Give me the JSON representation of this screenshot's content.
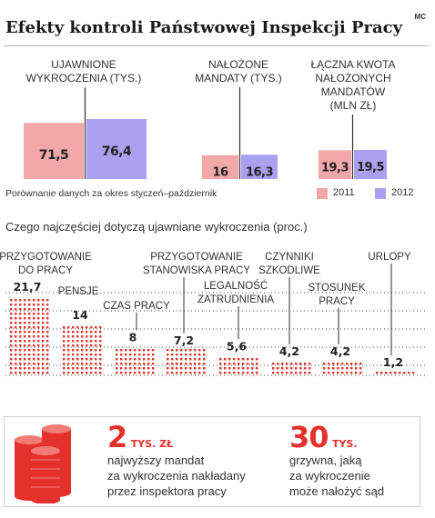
{
  "title": "Efekty kontroli Państwowej Inspekcji Pracy",
  "source": "MC",
  "top_note": "Porównanie danych za okres styczeń–październik",
  "legend": [
    {
      "label": "2011",
      "color": "#f2a8a8"
    },
    {
      "label": "2012",
      "color": "#a9a1ef"
    }
  ],
  "colors": {
    "y2011": "#f2a8a8",
    "y2012": "#a9a1ef",
    "accent": "#e4312b",
    "separator": "#333333"
  },
  "top_chart": {
    "groups": [
      {
        "label_lines": [
          "UJAWNIONE",
          "WYKROCZENIA (TYS.)"
        ],
        "v2011": 71.5,
        "v2012": 76.4,
        "t2011": "71,5",
        "t2012": "76,4"
      },
      {
        "label_lines": [
          "NAŁOŻONE",
          "MANDATY (TYS.)"
        ],
        "v2011": 16,
        "v2012": 16.3,
        "t2011": "16",
        "t2012": "16,3"
      },
      {
        "label_lines": [
          "ŁĄCZNA KWOTA",
          "NAŁOŻONYCH",
          "MANDATÓW",
          "(MLN ZŁ)"
        ],
        "v2011": 19.3,
        "v2012": 19.5,
        "t2011": "19,3",
        "t2012": "19,5"
      }
    ]
  },
  "subtitle": "Czego najczęściej dotyczą ujawniane wykroczenia (proc.)",
  "chart_data": [
    {
      "type": "bar",
      "title": "Efekty kontroli Państwowej Inspekcji Pracy",
      "categories": [
        "UJAWNIONE WYKROCZENIA (TYS.)",
        "NAŁOŻONE MANDATY (TYS.)",
        "ŁĄCZNA KWOTA NAŁOŻONYCH MANDATÓW (MLN ZŁ)"
      ],
      "series": [
        {
          "name": "2011",
          "values": [
            71.5,
            16,
            19.3
          ]
        },
        {
          "name": "2012",
          "values": [
            76.4,
            16.3,
            19.5
          ]
        }
      ]
    },
    {
      "type": "bar",
      "title": "Czego najczęściej dotyczą ujawniane wykroczenia (proc.)",
      "categories": [
        "PRZYGOTOWANIE DO PRACY",
        "PENSJE",
        "CZAS PRACY",
        "PRZYGOTOWANIE STANOWISKA PRACY",
        "LEGALNOŚĆ ZATRUDNIENIA",
        "CZYNNIKI SZKODLIWE",
        "STOSUNEK PRACY",
        "URLOPY"
      ],
      "values": [
        21.7,
        14,
        8,
        7.2,
        5.6,
        4.2,
        4.2,
        1.2
      ],
      "value_labels": [
        "21,7",
        "14",
        "8",
        "7,2",
        "5,6",
        "4,2",
        "4,2",
        "1,2"
      ]
    }
  ],
  "bottom_chart": {
    "items": [
      {
        "label_lines": [
          "PRZYGOTOWANIE",
          "DO PRACY"
        ]
      },
      {
        "label_lines": [
          "PENSJE"
        ]
      },
      {
        "label_lines": [
          "CZAS PRACY"
        ]
      },
      {
        "label_lines": [
          "PRZYGOTOWANIE",
          "STANOWISKA PRACY"
        ]
      },
      {
        "label_lines": [
          "LEGALNOŚĆ",
          "ZATRUDNIENIA"
        ]
      },
      {
        "label_lines": [
          "CZYNNIKI",
          "SZKODLIWE"
        ]
      },
      {
        "label_lines": [
          "STOSUNEK",
          "PRACY"
        ]
      },
      {
        "label_lines": [
          "URLOPY"
        ]
      }
    ]
  },
  "facts": [
    {
      "value": "2",
      "unit": "TYS. ZŁ",
      "lines": [
        "najwyższy mandat",
        "za wykroczenia nakładany",
        "przez inspektora pracy"
      ]
    },
    {
      "value": "30",
      "unit": "TYS.",
      "lines": [
        "grzywna, jaką",
        "za wykroczenie",
        "może nałożyć sąd"
      ]
    }
  ]
}
